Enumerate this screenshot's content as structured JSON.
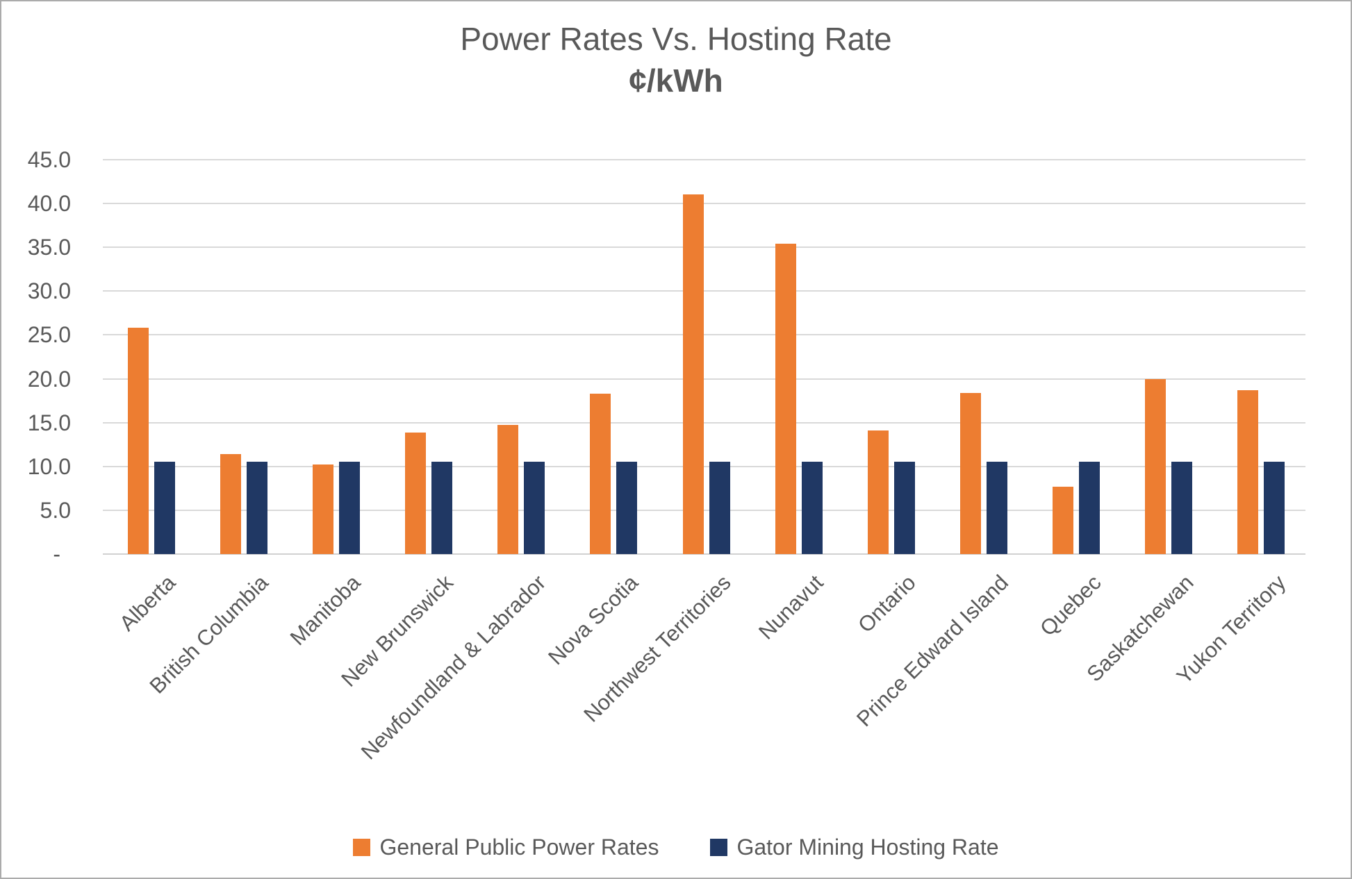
{
  "chart_data": {
    "type": "bar",
    "title": "Power Rates Vs. Hosting Rate",
    "subtitle": "¢/kWh",
    "categories": [
      "Alberta",
      "British Columbia",
      "Manitoba",
      "New Brunswick",
      "Newfoundland & Labrador",
      "Nova Scotia",
      "Northwest Territories",
      "Nunavut",
      "Ontario",
      "Prince Edward Island",
      "Quebec",
      "Saskatchewan",
      "Yukon Territory"
    ],
    "series": [
      {
        "name": "General Public Power Rates",
        "color": "#ED7D31",
        "values": [
          25.8,
          11.4,
          10.2,
          13.9,
          14.7,
          18.3,
          41.0,
          35.4,
          14.1,
          18.4,
          7.7,
          20.0,
          18.7
        ]
      },
      {
        "name": "Gator Mining Hosting Rate",
        "color": "#203864",
        "values": [
          10.5,
          10.5,
          10.5,
          10.5,
          10.5,
          10.5,
          10.5,
          10.5,
          10.5,
          10.5,
          10.5,
          10.5,
          10.5
        ]
      }
    ],
    "ylim": [
      0,
      45
    ],
    "ytick_step": 5,
    "yticks": [
      {
        "value": 0,
        "label": "-"
      },
      {
        "value": 5,
        "label": "5.0"
      },
      {
        "value": 10,
        "label": "10.0"
      },
      {
        "value": 15,
        "label": "15.0"
      },
      {
        "value": 20,
        "label": "20.0"
      },
      {
        "value": 25,
        "label": "25.0"
      },
      {
        "value": 30,
        "label": "30.0"
      },
      {
        "value": 35,
        "label": "35.0"
      },
      {
        "value": 40,
        "label": "40.0"
      },
      {
        "value": 45,
        "label": "45.0"
      }
    ],
    "grid": true,
    "legend_position": "bottom",
    "colors": {
      "text": "#595959",
      "gridline": "#D9D9D9",
      "border": "#ABABAB",
      "background": "#FFFFFF"
    }
  }
}
